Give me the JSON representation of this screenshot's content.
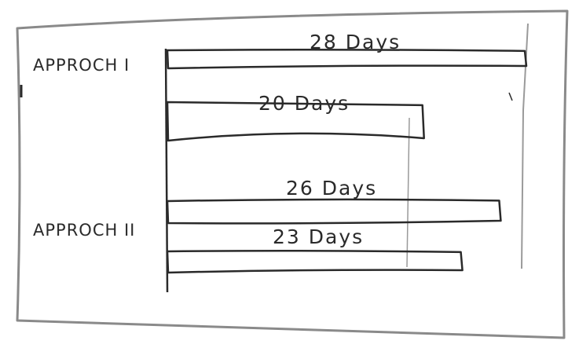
{
  "chart_data": {
    "type": "bar",
    "orientation": "horizontal",
    "style": "hand-drawn sketch",
    "categories": [
      "APPROCH I",
      "APPROCH II"
    ],
    "group_labels": [
      "APPROCH I",
      "APPROCH II"
    ],
    "bars": [
      {
        "group": "APPROCH I",
        "value": 28,
        "label": "28 Days"
      },
      {
        "group": "APPROCH I",
        "value": 20,
        "label": "20 Days"
      },
      {
        "group": "APPROCH II",
        "value": 26,
        "label": "26 Days"
      },
      {
        "group": "APPROCH II",
        "value": 23,
        "label": "23 Days"
      }
    ],
    "value_unit": "Days",
    "xlim": [
      0,
      28
    ],
    "reference_line_value": 20,
    "title": "",
    "xlabel": "",
    "ylabel": "",
    "grid": false,
    "legend": "none",
    "colors": {
      "ink": "#2a2a2a",
      "faint_ink": "#8a8a8a",
      "paper": "#ffffff"
    }
  }
}
